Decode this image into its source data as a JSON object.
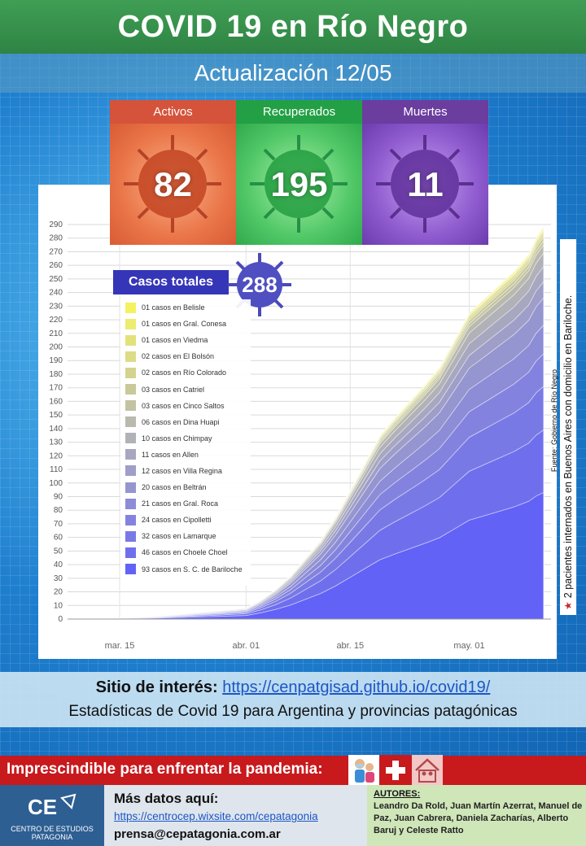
{
  "header": {
    "title": "COVID 19 en Río Negro",
    "update": "Actualización  12/05"
  },
  "stats": {
    "activos": {
      "label": "Activos",
      "value": "82"
    },
    "recuperados": {
      "label": "Recuperados",
      "value": "195"
    },
    "muertes": {
      "label": "Muertes",
      "value": "11"
    }
  },
  "totals": {
    "label": "Casos totales",
    "value": "288"
  },
  "legend": [
    {
      "label": "01 casos en Belisle",
      "color": "#f4f25e"
    },
    {
      "label": "01 casos en Gral. Conesa",
      "color": "#ecec70"
    },
    {
      "label": "01 casos en Viedma",
      "color": "#e2e27a"
    },
    {
      "label": "02 casos en El Bolsón",
      "color": "#dcdc86"
    },
    {
      "label": "02 casos en Río Colorado",
      "color": "#d3d38f"
    },
    {
      "label": "03 casos en Catriel",
      "color": "#c9c99a"
    },
    {
      "label": "03 casos en Cinco Saltos",
      "color": "#c3c3a4"
    },
    {
      "label": "06 casos en Dina Huapi",
      "color": "#b9b9ad"
    },
    {
      "label": "10 casos en Chimpay",
      "color": "#b1b1b8"
    },
    {
      "label": "11 casos en Allen",
      "color": "#a7a7c0"
    },
    {
      "label": "12 casos en Villa Regina",
      "color": "#9e9ec8"
    },
    {
      "label": "20 casos en Beltrán",
      "color": "#9595d0"
    },
    {
      "label": "21 casos en Gral. Roca",
      "color": "#8c8cd7"
    },
    {
      "label": "24 casos en Cipolletti",
      "color": "#8383df"
    },
    {
      "label": "32 casos en Lamarque",
      "color": "#7979e6"
    },
    {
      "label": "46 casos en Choele Choel",
      "color": "#6f6fee"
    },
    {
      "label": "93 casos en S. C. de Bariloche",
      "color": "#6262f7"
    }
  ],
  "side": {
    "source": "Fuente: Gobierno de Río Negro",
    "note": "2 pacientes internados en Buenos Aires con domicilio en Bariloche."
  },
  "site": {
    "label": "Sitio de interés:",
    "url": "https://cenpatgisad.github.io/covid19/",
    "desc": "Estadísticas de Covid 19 para Argentina y provincias patagónicas"
  },
  "pandemic": {
    "text": "Imprescindible para enfrentar la pandemia:"
  },
  "footer": {
    "logo_text": "CE",
    "logo_name1": "CENTRO DE ESTUDIOS",
    "logo_name2": "PATAGONIA",
    "more_label": "Más datos aquí:",
    "more_url": "https://centrocep.wixsite.com/cepatagonia",
    "email": "prensa@cepatagonia.com.ar",
    "authors_heading": "AUTORES:",
    "authors": "Leandro Da Rold, Juan Martín Azerrat, Manuel de Paz, Juan Cabrera, Daniela Zacharías, Alberto Baruj y Celeste Ratto"
  },
  "chart_data": {
    "type": "area",
    "stacked": true,
    "x_tick_labels": [
      "mar. 15",
      "abr. 01",
      "abr. 15",
      "may. 01"
    ],
    "x_tick_days": [
      15,
      32,
      46,
      62
    ],
    "x_domain_days": [
      8,
      73
    ],
    "ylim": [
      0,
      290
    ],
    "y_ticks": [
      0,
      10,
      20,
      30,
      40,
      50,
      60,
      70,
      80,
      90,
      100,
      110,
      120,
      130,
      140,
      150,
      160,
      170,
      180,
      190,
      200,
      210,
      220,
      230,
      240,
      250,
      260,
      270,
      280,
      290
    ],
    "grid": true,
    "legend_position": "top-left",
    "x_days": [
      8,
      12,
      16,
      20,
      24,
      28,
      32,
      34,
      36,
      38,
      40,
      42,
      44,
      46,
      48,
      50,
      52,
      54,
      56,
      58,
      60,
      62,
      64,
      66,
      68,
      70,
      71,
      72
    ],
    "total": [
      0,
      0,
      1,
      2,
      4,
      6,
      8,
      14,
      22,
      32,
      45,
      58,
      75,
      95,
      115,
      135,
      148,
      160,
      172,
      185,
      205,
      225,
      235,
      245,
      255,
      268,
      280,
      288
    ],
    "series_final": [
      1,
      1,
      1,
      2,
      2,
      3,
      3,
      6,
      10,
      11,
      12,
      20,
      21,
      24,
      32,
      46,
      93
    ]
  }
}
